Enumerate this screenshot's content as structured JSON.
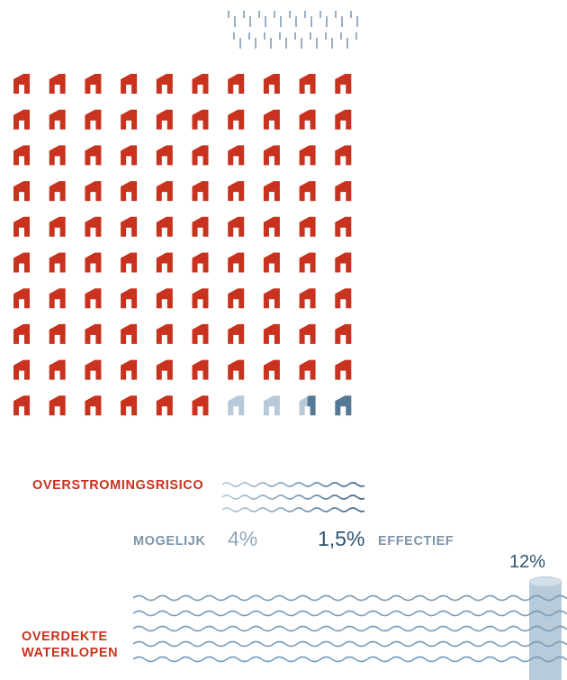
{
  "infographic": {
    "flood_risk": {
      "label": "OVERSTROMINGSRISICO",
      "possible_label": "MOGELIJK",
      "possible_value": "4%",
      "effective_value": "1,5%",
      "effective_label": "EFFECTIEF",
      "houses_total": 100,
      "houses_possible_risk": 4,
      "houses_effective_risk": 1.5
    },
    "covered_waterways": {
      "label_line1": "OVERDEKTE",
      "label_line2": "WATERLOPEN",
      "value": "12%",
      "share": 0.12
    },
    "colors": {
      "house": "#c8321e",
      "house_possible_risk": "#b7cad9",
      "house_effective_risk": "#557894",
      "rain": "#7d9db8",
      "wave": "#7d9db8",
      "wave_dark": "#3f6483",
      "pipe": "#b8cbdb"
    },
    "icons": [
      "house-icon",
      "rain-icon",
      "wave-icon",
      "pipe-icon"
    ]
  }
}
